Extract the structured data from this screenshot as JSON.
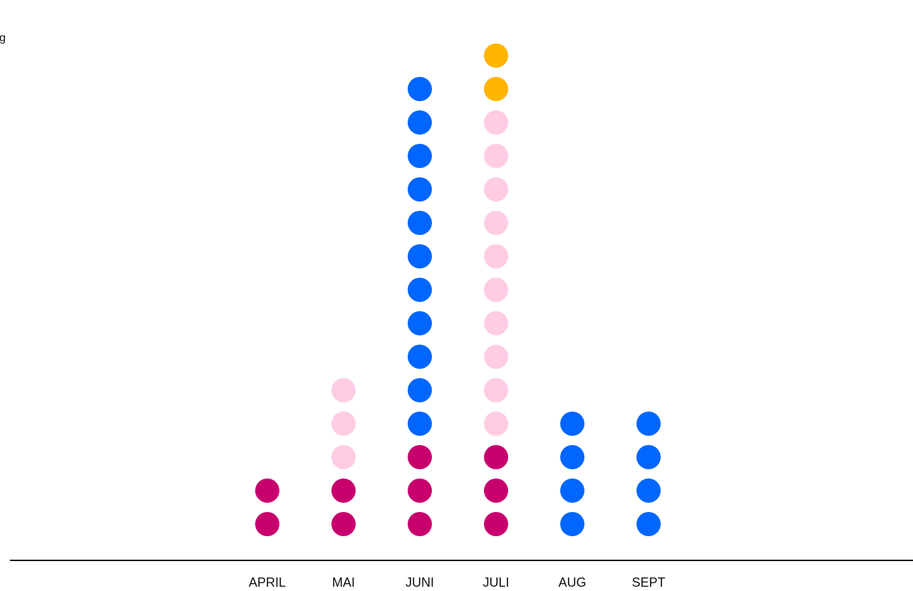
{
  "corner_text": "g",
  "chart_data": {
    "type": "dot-stack",
    "categories": [
      "APRIL",
      "MAI",
      "JUNI",
      "JULI",
      "AUG",
      "SEPT"
    ],
    "series": [
      {
        "color": "#c8006e",
        "values": [
          2,
          2,
          3,
          3,
          0,
          0
        ]
      },
      {
        "color": "#ffcce3",
        "values": [
          0,
          3,
          0,
          10,
          0,
          0
        ]
      },
      {
        "color": "#0066ff",
        "values": [
          0,
          0,
          11,
          0,
          4,
          4
        ]
      },
      {
        "color": "#ffb400",
        "values": [
          0,
          0,
          0,
          2,
          0,
          0
        ]
      }
    ],
    "axis_color": "#111111",
    "grid": false
  }
}
